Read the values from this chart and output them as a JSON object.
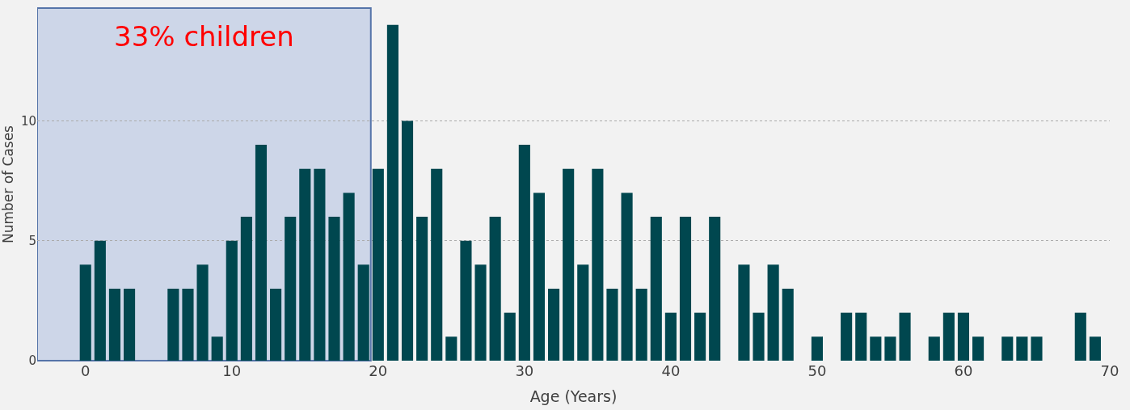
{
  "chart_data": {
    "type": "bar",
    "xlabel": "Age (Years)",
    "ylabel": "Number of Cases",
    "x": [
      0,
      1,
      2,
      3,
      4,
      5,
      6,
      7,
      8,
      9,
      10,
      11,
      12,
      13,
      14,
      15,
      16,
      17,
      18,
      19,
      20,
      21,
      22,
      23,
      24,
      25,
      26,
      27,
      28,
      29,
      30,
      31,
      32,
      33,
      34,
      35,
      36,
      37,
      38,
      39,
      40,
      41,
      42,
      43,
      44,
      45,
      46,
      47,
      48,
      49,
      50,
      51,
      52,
      53,
      54,
      55,
      56,
      57,
      58,
      59,
      60,
      61,
      62,
      63,
      64,
      65,
      66,
      67,
      68,
      69
    ],
    "values": [
      4,
      5,
      3,
      3,
      0,
      0,
      3,
      3,
      4,
      1,
      5,
      6,
      9,
      3,
      6,
      8,
      8,
      6,
      7,
      4,
      8,
      14,
      10,
      6,
      8,
      1,
      5,
      4,
      6,
      2,
      9,
      7,
      3,
      8,
      4,
      8,
      3,
      7,
      3,
      6,
      2,
      6,
      2,
      6,
      0,
      4,
      2,
      4,
      3,
      0,
      1,
      0,
      2,
      2,
      1,
      1,
      2,
      0,
      1,
      2,
      2,
      1,
      0,
      1,
      1,
      1,
      0,
      0,
      2,
      1
    ],
    "color": "#00474f",
    "xlim": [
      -3.3,
      70
    ],
    "xticks": [
      0,
      10,
      20,
      30,
      40,
      50,
      60,
      70
    ],
    "ylim": [
      0,
      14.7
    ],
    "yticks": [
      0,
      5,
      10
    ],
    "grid": "y",
    "bands": [
      {
        "axis": "x",
        "from": -3.3,
        "to": 19.5,
        "label": "33% children",
        "color": "#c5d0e6"
      }
    ]
  }
}
